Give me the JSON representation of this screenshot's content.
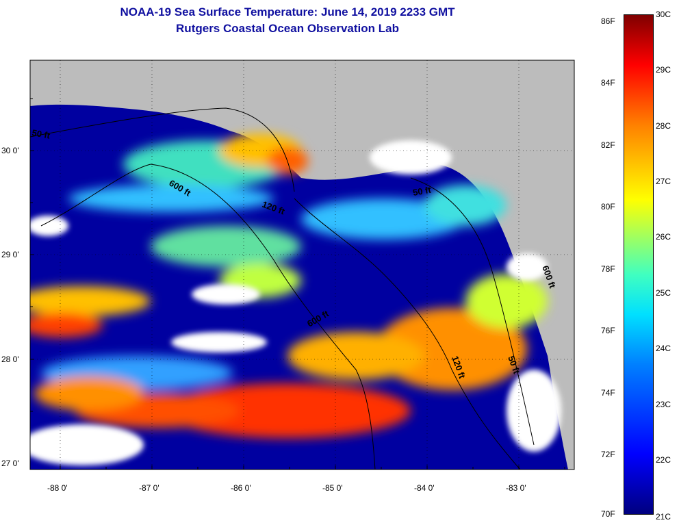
{
  "title": {
    "line1": "NOAA-19 Sea Surface Temperature:  June 14, 2019 2233 GMT",
    "line2": "Rutgers Coastal Ocean Observation Lab"
  },
  "axes": {
    "lat_labels": [
      "30 0'",
      "29 0'",
      "28 0'",
      "27 0'"
    ],
    "lon_labels": [
      "-88 0'",
      "-87 0'",
      "-86 0'",
      "-85 0'",
      "-84 0'",
      "-83 0'"
    ]
  },
  "contour_labels": [
    "50 ft",
    "600 ft",
    "120 ft",
    "50 ft",
    "600 ft",
    "120 ft",
    "50 ft",
    "600 ft"
  ],
  "colorbar": {
    "fahrenheit": [
      "86F",
      "84F",
      "82F",
      "80F",
      "78F",
      "76F",
      "74F",
      "72F",
      "70F"
    ],
    "celsius": [
      "30C",
      "29C",
      "28C",
      "27C",
      "26C",
      "25C",
      "24C",
      "23C",
      "22C",
      "21C"
    ],
    "range_c": [
      21,
      30
    ]
  },
  "colors": {
    "land": "#bcbcbc",
    "cloud": "#ffffff",
    "cold": "#0000a0",
    "title": "#1010a0"
  }
}
